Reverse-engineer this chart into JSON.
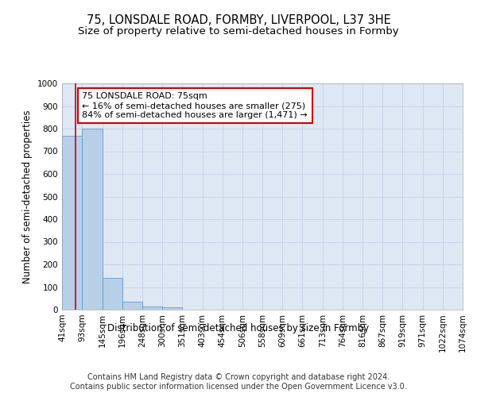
{
  "title": "75, LONSDALE ROAD, FORMBY, LIVERPOOL, L37 3HE",
  "subtitle": "Size of property relative to semi-detached houses in Formby",
  "xlabel": "Distribution of semi-detached houses by size in Formby",
  "ylabel": "Number of semi-detached properties",
  "footer_line1": "Contains HM Land Registry data © Crown copyright and database right 2024.",
  "footer_line2": "Contains public sector information licensed under the Open Government Licence v3.0.",
  "bin_edges": [
    41,
    93,
    145,
    196,
    248,
    300,
    351,
    403,
    454,
    506,
    558,
    609,
    661,
    713,
    764,
    816,
    867,
    919,
    971,
    1022,
    1074
  ],
  "bin_labels": [
    "41sqm",
    "93sqm",
    "145sqm",
    "196sqm",
    "248sqm",
    "300sqm",
    "351sqm",
    "403sqm",
    "454sqm",
    "506sqm",
    "558sqm",
    "609sqm",
    "661sqm",
    "713sqm",
    "764sqm",
    "816sqm",
    "867sqm",
    "919sqm",
    "971sqm",
    "1022sqm",
    "1074sqm"
  ],
  "bar_heights": [
    770,
    800,
    140,
    35,
    15,
    10,
    0,
    0,
    0,
    0,
    0,
    0,
    0,
    0,
    0,
    0,
    0,
    0,
    0,
    0
  ],
  "bar_color": "#b8cfe8",
  "bar_edge_color": "#6699cc",
  "red_line_x": 75,
  "annotation_title": "75 LONSDALE ROAD: 75sqm",
  "annotation_line1": "← 16% of semi-detached houses are smaller (275)",
  "annotation_line2": "84% of semi-detached houses are larger (1,471) →",
  "annotation_border_color": "#cc0000",
  "red_line_color": "#cc0000",
  "ylim": [
    0,
    1000
  ],
  "yticks": [
    0,
    100,
    200,
    300,
    400,
    500,
    600,
    700,
    800,
    900,
    1000
  ],
  "grid_color": "#c8d4e8",
  "background_color": "#dde8f4",
  "title_fontsize": 10.5,
  "subtitle_fontsize": 9.5,
  "axis_label_fontsize": 8.5,
  "tick_fontsize": 7.5,
  "annotation_fontsize": 8.0,
  "footer_fontsize": 7.0
}
